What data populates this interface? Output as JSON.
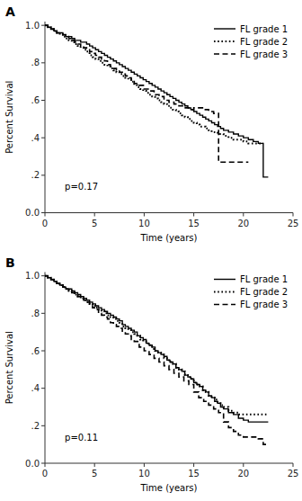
{
  "chart_data": [
    {
      "type": "step",
      "title": "A",
      "annotations": [
        "p=0.17"
      ],
      "x_label": "Time (years)",
      "y_label": "Percent Survival",
      "xlim": [
        0,
        25
      ],
      "ylim": [
        0.0,
        1.02
      ],
      "xticks": [
        0,
        5,
        10,
        15,
        20,
        25
      ],
      "yticks": [
        {
          "value": 0.0,
          "label": "0.0"
        },
        {
          "value": 0.2,
          "label": ".2"
        },
        {
          "value": 0.4,
          "label": ".4"
        },
        {
          "value": 0.6,
          "label": ".6"
        },
        {
          "value": 0.8,
          "label": ".8"
        },
        {
          "value": 1.0,
          "label": "1.0"
        }
      ],
      "grid": false,
      "legend": "top-right",
      "series": [
        {
          "name": "FL grade 1",
          "color": "#000000",
          "line_style": "solid",
          "x": [
            0,
            0.3,
            0.6,
            0.9,
            1.2,
            1.5,
            1.8,
            2.1,
            2.4,
            2.7,
            3.0,
            3.3,
            3.6,
            3.9,
            4.2,
            4.5,
            4.8,
            5.1,
            5.4,
            5.7,
            6.0,
            6.3,
            6.6,
            6.9,
            7.2,
            7.5,
            7.8,
            8.1,
            8.4,
            8.7,
            9.0,
            9.3,
            9.6,
            9.9,
            10.2,
            10.5,
            10.8,
            11.1,
            11.4,
            11.7,
            12.0,
            12.3,
            12.6,
            12.9,
            13.2,
            13.5,
            13.8,
            14.1,
            14.4,
            14.7,
            15.0,
            15.3,
            15.6,
            15.9,
            16.2,
            16.5,
            16.8,
            17.1,
            17.4,
            17.7,
            18.0,
            18.5,
            19.0,
            19.5,
            20.0,
            20.5,
            21.0,
            21.5,
            22.0,
            22.5
          ],
          "values": [
            1.0,
            0.99,
            0.98,
            0.97,
            0.96,
            0.96,
            0.95,
            0.94,
            0.94,
            0.93,
            0.92,
            0.92,
            0.91,
            0.91,
            0.9,
            0.89,
            0.88,
            0.87,
            0.86,
            0.85,
            0.84,
            0.83,
            0.82,
            0.81,
            0.8,
            0.79,
            0.78,
            0.77,
            0.76,
            0.75,
            0.74,
            0.73,
            0.72,
            0.71,
            0.7,
            0.69,
            0.68,
            0.67,
            0.66,
            0.65,
            0.64,
            0.63,
            0.62,
            0.61,
            0.6,
            0.59,
            0.58,
            0.57,
            0.56,
            0.55,
            0.54,
            0.53,
            0.52,
            0.51,
            0.5,
            0.49,
            0.48,
            0.47,
            0.46,
            0.45,
            0.44,
            0.43,
            0.42,
            0.41,
            0.4,
            0.39,
            0.38,
            0.37,
            0.19,
            0.19
          ]
        },
        {
          "name": "FL grade 2",
          "color": "#000000",
          "line_style": "dotted",
          "x": [
            0,
            0.3,
            0.6,
            0.9,
            1.2,
            1.5,
            1.8,
            2.1,
            2.4,
            2.7,
            3.0,
            3.3,
            3.6,
            3.9,
            4.2,
            4.5,
            4.8,
            5.1,
            5.4,
            5.7,
            6.0,
            6.3,
            6.6,
            6.9,
            7.2,
            7.5,
            7.8,
            8.1,
            8.4,
            8.7,
            9.0,
            9.3,
            9.6,
            9.9,
            10.2,
            10.5,
            10.8,
            11.1,
            11.4,
            11.7,
            12.0,
            12.3,
            12.6,
            12.9,
            13.2,
            13.5,
            13.8,
            14.1,
            14.4,
            14.7,
            15.0,
            15.3,
            15.6,
            15.9,
            16.2,
            16.5,
            16.8,
            17.1,
            17.4,
            17.7,
            18.0,
            18.5,
            19.0,
            19.5,
            20.0,
            20.5,
            21.0,
            21.5,
            22.0
          ],
          "values": [
            1.0,
            0.99,
            0.98,
            0.97,
            0.96,
            0.95,
            0.94,
            0.93,
            0.92,
            0.91,
            0.9,
            0.89,
            0.88,
            0.87,
            0.86,
            0.84,
            0.83,
            0.82,
            0.81,
            0.8,
            0.79,
            0.78,
            0.77,
            0.76,
            0.75,
            0.74,
            0.73,
            0.72,
            0.71,
            0.7,
            0.68,
            0.67,
            0.66,
            0.65,
            0.64,
            0.63,
            0.62,
            0.61,
            0.6,
            0.59,
            0.58,
            0.57,
            0.56,
            0.55,
            0.54,
            0.53,
            0.52,
            0.51,
            0.5,
            0.49,
            0.48,
            0.47,
            0.46,
            0.46,
            0.45,
            0.44,
            0.43,
            0.43,
            0.42,
            0.42,
            0.41,
            0.4,
            0.39,
            0.39,
            0.38,
            0.37,
            0.37,
            0.37,
            0.37
          ]
        },
        {
          "name": "FL grade 3",
          "color": "#000000",
          "line_style": "dashed",
          "x": [
            0,
            0.3,
            0.6,
            0.9,
            1.2,
            1.5,
            1.8,
            2.1,
            2.4,
            2.7,
            3.0,
            3.3,
            3.6,
            3.9,
            4.2,
            4.5,
            4.8,
            5.1,
            5.4,
            5.7,
            6.0,
            6.3,
            6.6,
            6.9,
            7.2,
            7.5,
            7.8,
            8.1,
            8.4,
            8.7,
            9.0,
            9.5,
            10.0,
            10.5,
            11.0,
            11.5,
            12.0,
            12.5,
            13.0,
            13.5,
            14.0,
            14.5,
            15.0,
            15.5,
            16.0,
            16.3,
            16.5,
            17.0,
            17.5,
            17.8,
            18.5,
            19.0,
            19.5,
            20.0,
            20.5
          ],
          "values": [
            1.0,
            0.99,
            0.98,
            0.97,
            0.96,
            0.96,
            0.95,
            0.94,
            0.93,
            0.92,
            0.91,
            0.9,
            0.89,
            0.88,
            0.87,
            0.86,
            0.85,
            0.84,
            0.83,
            0.82,
            0.81,
            0.79,
            0.78,
            0.77,
            0.76,
            0.75,
            0.74,
            0.73,
            0.72,
            0.7,
            0.69,
            0.68,
            0.66,
            0.65,
            0.63,
            0.62,
            0.6,
            0.59,
            0.58,
            0.57,
            0.56,
            0.55,
            0.56,
            0.56,
            0.55,
            0.55,
            0.54,
            0.53,
            0.27,
            0.27,
            0.27,
            0.27,
            0.27,
            0.27,
            0.27
          ]
        }
      ]
    },
    {
      "type": "step",
      "title": "B",
      "annotations": [
        "p=0.11"
      ],
      "x_label": "Time (years)",
      "y_label": "Percent Survival",
      "xlim": [
        0,
        25
      ],
      "ylim": [
        0.0,
        1.02
      ],
      "xticks": [
        0,
        5,
        10,
        15,
        20,
        25
      ],
      "yticks": [
        {
          "value": 0.0,
          "label": "0.0"
        },
        {
          "value": 0.2,
          "label": ".2"
        },
        {
          "value": 0.4,
          "label": ".4"
        },
        {
          "value": 0.6,
          "label": ".6"
        },
        {
          "value": 0.8,
          "label": ".8"
        },
        {
          "value": 1.0,
          "label": "1.0"
        }
      ],
      "grid": false,
      "legend": "top-right",
      "series": [
        {
          "name": "FL grade 1",
          "color": "#000000",
          "line_style": "solid",
          "x": [
            0,
            0.3,
            0.6,
            0.9,
            1.2,
            1.5,
            1.8,
            2.1,
            2.4,
            2.7,
            3.0,
            3.3,
            3.6,
            3.9,
            4.2,
            4.5,
            4.8,
            5.1,
            5.4,
            5.7,
            6.0,
            6.3,
            6.6,
            6.9,
            7.2,
            7.5,
            7.8,
            8.1,
            8.4,
            8.7,
            9.0,
            9.3,
            9.6,
            9.9,
            10.2,
            10.5,
            10.8,
            11.1,
            11.4,
            11.7,
            12.0,
            12.3,
            12.6,
            12.9,
            13.2,
            13.5,
            13.8,
            14.1,
            14.4,
            14.7,
            15.0,
            15.3,
            15.6,
            15.9,
            16.2,
            16.5,
            16.8,
            17.1,
            17.4,
            17.7,
            18.0,
            18.5,
            19.0,
            19.5,
            20.0,
            20.5,
            21.0,
            21.5,
            22.0,
            22.5
          ],
          "values": [
            1.0,
            0.99,
            0.98,
            0.97,
            0.96,
            0.95,
            0.94,
            0.93,
            0.93,
            0.92,
            0.91,
            0.9,
            0.89,
            0.88,
            0.87,
            0.86,
            0.85,
            0.84,
            0.83,
            0.82,
            0.81,
            0.8,
            0.79,
            0.78,
            0.77,
            0.76,
            0.74,
            0.73,
            0.72,
            0.71,
            0.7,
            0.68,
            0.67,
            0.66,
            0.64,
            0.63,
            0.62,
            0.6,
            0.59,
            0.58,
            0.57,
            0.55,
            0.54,
            0.53,
            0.51,
            0.5,
            0.49,
            0.47,
            0.46,
            0.45,
            0.43,
            0.42,
            0.41,
            0.39,
            0.38,
            0.36,
            0.35,
            0.33,
            0.32,
            0.3,
            0.29,
            0.27,
            0.26,
            0.24,
            0.23,
            0.22,
            0.22,
            0.22,
            0.22,
            0.22
          ]
        },
        {
          "name": "FL grade 2",
          "color": "#000000",
          "line_style": "dotted",
          "x": [
            0,
            0.3,
            0.6,
            0.9,
            1.2,
            1.5,
            1.8,
            2.1,
            2.4,
            2.7,
            3.0,
            3.3,
            3.6,
            3.9,
            4.2,
            4.5,
            4.8,
            5.1,
            5.4,
            5.7,
            6.0,
            6.3,
            6.6,
            6.9,
            7.2,
            7.5,
            7.8,
            8.1,
            8.4,
            8.7,
            9.0,
            9.3,
            9.6,
            9.9,
            10.2,
            10.5,
            10.8,
            11.1,
            11.4,
            11.7,
            12.0,
            12.3,
            12.6,
            12.9,
            13.2,
            13.5,
            13.8,
            14.1,
            14.4,
            14.7,
            15.0,
            15.3,
            15.6,
            15.9,
            16.2,
            16.5,
            16.8,
            17.1,
            17.4,
            17.7,
            18.0,
            18.5,
            19.0,
            19.5,
            20.0,
            20.5,
            21.0,
            21.5,
            22.0,
            22.5
          ],
          "values": [
            1.0,
            0.99,
            0.98,
            0.97,
            0.96,
            0.95,
            0.94,
            0.93,
            0.92,
            0.91,
            0.9,
            0.89,
            0.88,
            0.87,
            0.86,
            0.85,
            0.84,
            0.83,
            0.82,
            0.81,
            0.8,
            0.79,
            0.78,
            0.77,
            0.76,
            0.75,
            0.73,
            0.72,
            0.71,
            0.7,
            0.69,
            0.68,
            0.66,
            0.65,
            0.64,
            0.63,
            0.61,
            0.6,
            0.59,
            0.58,
            0.56,
            0.55,
            0.54,
            0.53,
            0.51,
            0.5,
            0.49,
            0.47,
            0.46,
            0.45,
            0.43,
            0.42,
            0.41,
            0.39,
            0.38,
            0.36,
            0.35,
            0.34,
            0.32,
            0.31,
            0.3,
            0.28,
            0.27,
            0.26,
            0.26,
            0.26,
            0.26,
            0.26,
            0.26,
            0.26
          ]
        },
        {
          "name": "FL grade 3",
          "color": "#000000",
          "line_style": "dashed",
          "x": [
            0,
            0.3,
            0.6,
            0.9,
            1.2,
            1.5,
            1.8,
            2.1,
            2.4,
            2.7,
            3.0,
            3.3,
            3.6,
            3.9,
            4.2,
            4.5,
            4.8,
            5.1,
            5.4,
            5.7,
            6.0,
            6.3,
            6.6,
            6.9,
            7.2,
            7.5,
            7.8,
            8.1,
            8.4,
            8.7,
            9.0,
            9.5,
            10.0,
            10.5,
            11.0,
            11.5,
            12.0,
            12.5,
            13.0,
            13.5,
            14.0,
            14.5,
            15.0,
            15.5,
            16.0,
            16.5,
            17.0,
            17.5,
            18.0,
            18.5,
            19.0,
            19.5,
            20.0,
            20.5,
            21.0,
            21.5,
            22.0,
            22.5
          ],
          "values": [
            1.0,
            0.99,
            0.98,
            0.97,
            0.96,
            0.95,
            0.94,
            0.93,
            0.92,
            0.91,
            0.9,
            0.89,
            0.88,
            0.87,
            0.86,
            0.84,
            0.83,
            0.82,
            0.8,
            0.79,
            0.78,
            0.77,
            0.75,
            0.74,
            0.73,
            0.72,
            0.7,
            0.69,
            0.68,
            0.66,
            0.65,
            0.62,
            0.6,
            0.58,
            0.56,
            0.54,
            0.52,
            0.5,
            0.48,
            0.46,
            0.44,
            0.42,
            0.38,
            0.35,
            0.33,
            0.31,
            0.29,
            0.27,
            0.22,
            0.19,
            0.17,
            0.15,
            0.14,
            0.14,
            0.14,
            0.13,
            0.1,
            0.1
          ]
        }
      ]
    }
  ]
}
